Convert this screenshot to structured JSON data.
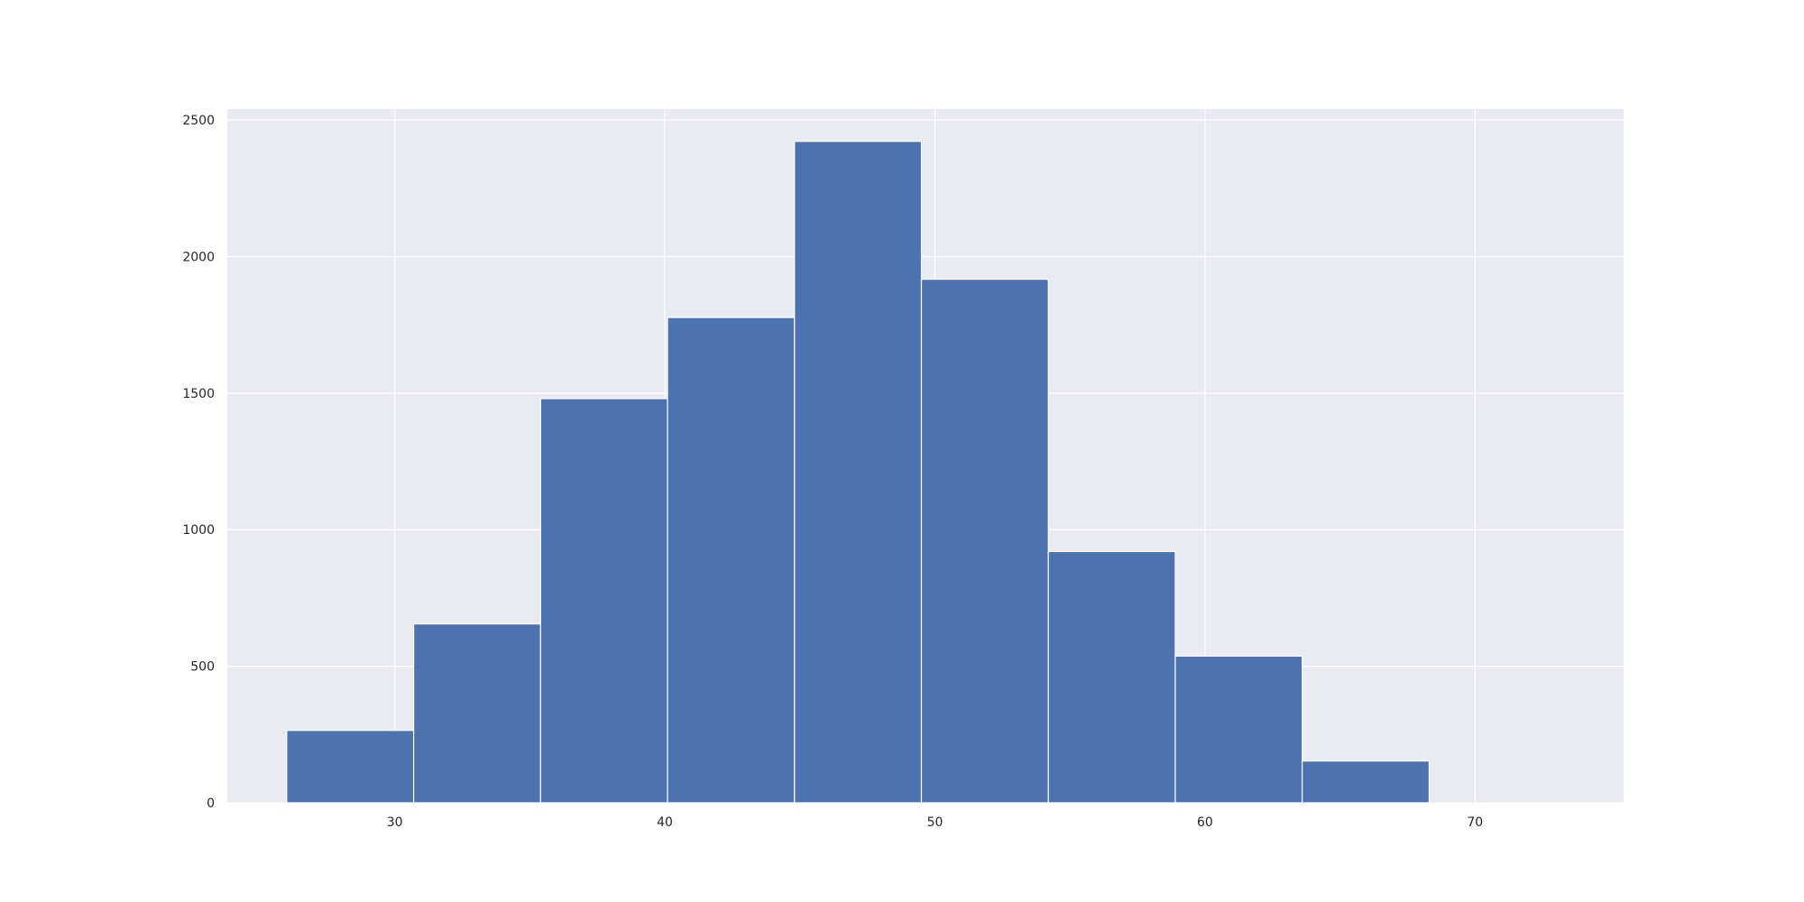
{
  "chart_data": {
    "type": "histogram",
    "title": "",
    "xlabel": "",
    "ylabel": "",
    "xlim": [
      23.8,
      75.5
    ],
    "ylim": [
      0,
      2540
    ],
    "x_ticks": [
      30,
      40,
      50,
      60,
      70
    ],
    "y_ticks": [
      0,
      500,
      1000,
      1500,
      2000,
      2500
    ],
    "bins": [
      {
        "start": 26.0,
        "end": 30.7,
        "count": 265
      },
      {
        "start": 30.7,
        "end": 35.4,
        "count": 655
      },
      {
        "start": 35.4,
        "end": 40.1,
        "count": 1480
      },
      {
        "start": 40.1,
        "end": 44.8,
        "count": 1777
      },
      {
        "start": 44.8,
        "end": 49.5,
        "count": 2422
      },
      {
        "start": 49.5,
        "end": 54.2,
        "count": 1917
      },
      {
        "start": 54.2,
        "end": 58.9,
        "count": 920
      },
      {
        "start": 58.9,
        "end": 63.6,
        "count": 537
      },
      {
        "start": 63.6,
        "end": 68.3,
        "count": 153
      }
    ],
    "grid": true,
    "colors": {
      "bar": "#4c72b0",
      "bar_edge": "#ffffff",
      "plot_background": "#eaeaf2",
      "grid": "#ffffff"
    }
  }
}
